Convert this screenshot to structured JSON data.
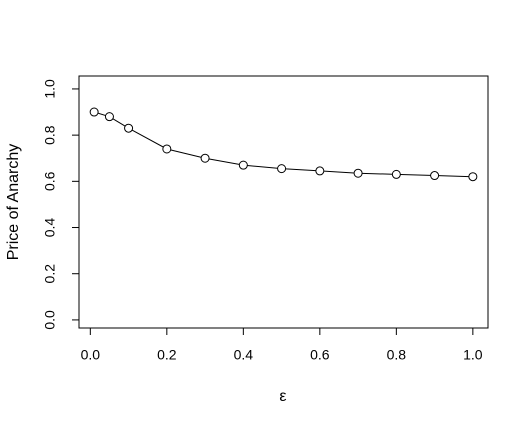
{
  "chart_data": {
    "type": "line",
    "x_label": "ε",
    "y_label": "Price of Anarchy",
    "x": [
      0.01,
      0.05,
      0.1,
      0.2,
      0.3,
      0.4,
      0.5,
      0.6,
      0.7,
      0.8,
      0.9,
      1.0
    ],
    "series": [
      {
        "color": "#000000",
        "values": [
          0.9,
          0.88,
          0.83,
          0.74,
          0.7,
          0.67,
          0.655,
          0.645,
          0.635,
          0.63,
          0.625,
          0.62
        ]
      }
    ],
    "xlim": [
      -0.0296,
      1.0396
    ],
    "ylim": [
      -0.035,
      1.056
    ],
    "xticks": [
      {
        "value": 0,
        "label": "0.0"
      },
      0.2,
      0.4,
      0.6,
      0.8,
      {
        "value": 1,
        "label": "1.0"
      }
    ],
    "yticks": [
      {
        "value": 0,
        "label": "0.0"
      },
      0.2,
      0.4,
      0.6,
      0.8,
      {
        "value": 1,
        "label": "1.0"
      }
    ],
    "grid": false
  }
}
